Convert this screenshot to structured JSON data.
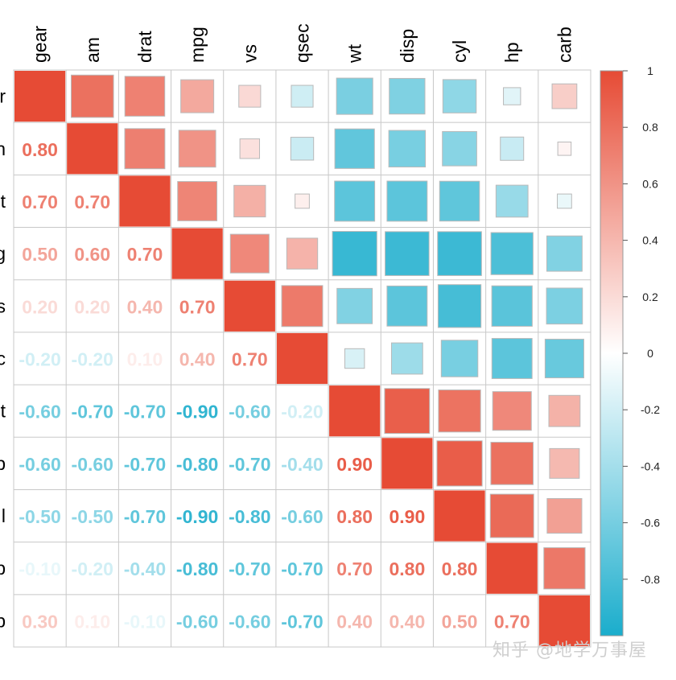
{
  "chart_data": {
    "type": "heatmap",
    "variables": [
      "gear",
      "am",
      "drat",
      "mpg",
      "vs",
      "qsec",
      "wt",
      "disp",
      "cyl",
      "hp",
      "carb"
    ],
    "row_labels_visible": [
      "r",
      "n",
      "t",
      "g",
      "s",
      "c",
      "t",
      "p",
      "l",
      "p",
      "p"
    ],
    "lower_labels": [
      [],
      [
        "0.80"
      ],
      [
        "0.70",
        "0.70"
      ],
      [
        "0.50",
        "0.60",
        "0.70"
      ],
      [
        "0.20",
        "0.20",
        "0.40",
        "0.70"
      ],
      [
        "-0.20",
        "-0.20",
        "0.10",
        "0.40",
        "0.70"
      ],
      [
        "-0.60",
        "-0.70",
        "-0.70",
        "-0.90",
        "-0.60",
        "-0.20"
      ],
      [
        "-0.60",
        "-0.60",
        "-0.70",
        "-0.80",
        "-0.70",
        "-0.40",
        "0.90"
      ],
      [
        "-0.50",
        "-0.50",
        "-0.70",
        "-0.90",
        "-0.80",
        "-0.60",
        "0.80",
        "0.90"
      ],
      [
        "-0.10",
        "-0.20",
        "-0.40",
        "-0.80",
        "-0.70",
        "-0.70",
        "0.70",
        "0.80",
        "0.80"
      ],
      [
        "0.30",
        "0.10",
        "-0.10",
        "-0.60",
        "-0.60",
        "-0.70",
        "0.40",
        "0.40",
        "0.50",
        "0.70"
      ]
    ],
    "upper_values": [
      [
        null,
        0.79,
        0.7,
        0.48,
        0.21,
        -0.21,
        -0.58,
        -0.56,
        -0.49,
        -0.13,
        0.27
      ],
      [
        null,
        null,
        0.71,
        0.6,
        0.17,
        -0.23,
        -0.69,
        -0.59,
        -0.52,
        -0.24,
        0.06
      ],
      [
        null,
        null,
        null,
        0.68,
        0.44,
        0.09,
        -0.71,
        -0.71,
        -0.7,
        -0.45,
        -0.09
      ],
      [
        null,
        null,
        null,
        null,
        0.66,
        0.42,
        -0.87,
        -0.85,
        -0.85,
        -0.78,
        -0.55
      ],
      [
        null,
        null,
        null,
        null,
        null,
        0.74,
        -0.55,
        -0.71,
        -0.81,
        -0.72,
        -0.57
      ],
      [
        null,
        null,
        null,
        null,
        null,
        null,
        -0.17,
        -0.43,
        -0.59,
        -0.71,
        -0.66
      ],
      [
        null,
        null,
        null,
        null,
        null,
        null,
        null,
        0.89,
        0.78,
        0.66,
        0.43
      ],
      [
        null,
        null,
        null,
        null,
        null,
        null,
        null,
        null,
        0.9,
        0.79,
        0.39
      ],
      [
        null,
        null,
        null,
        null,
        null,
        null,
        null,
        null,
        null,
        0.83,
        0.53
      ],
      [
        null,
        null,
        null,
        null,
        null,
        null,
        null,
        null,
        null,
        null,
        0.75
      ],
      [
        null,
        null,
        null,
        null,
        null,
        null,
        null,
        null,
        null,
        null,
        null
      ]
    ],
    "diagonal_value": 1,
    "colorbar": {
      "range": [
        -1,
        1
      ],
      "tick_labels": [
        "1",
        "0.8",
        "0.6",
        "0.4",
        "0.2",
        "0",
        "-0.2",
        "-0.4",
        "-0.6",
        "-0.8"
      ],
      "tick_values": [
        1,
        0.8,
        0.6,
        0.4,
        0.2,
        0,
        -0.2,
        -0.4,
        -0.6,
        -0.8
      ]
    },
    "colors": {
      "negative": "#1AADCC",
      "zero": "#FFFFFF",
      "positive": "#E64B35",
      "grid": "#C8C8C8"
    },
    "title": "",
    "xlabel": "",
    "ylabel": ""
  },
  "watermark": "知乎 @地学万事屋"
}
